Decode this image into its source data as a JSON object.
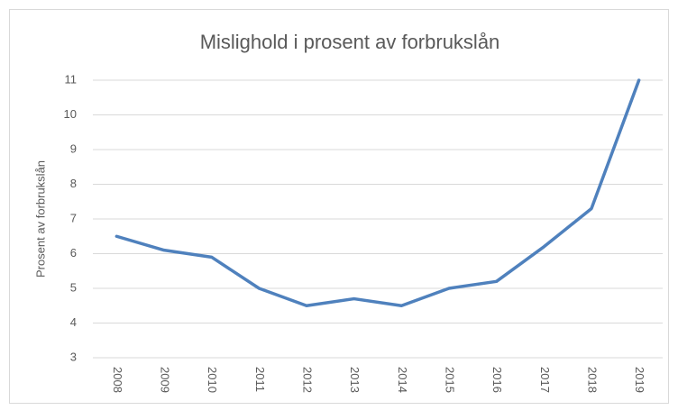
{
  "chart_data": {
    "type": "line",
    "title": "Mislighold i prosent av forbrukslån",
    "y_label": "Prosent av forbrukslån",
    "categories": [
      "2008",
      "2009",
      "2010",
      "2011",
      "2012",
      "2013",
      "2014",
      "2015",
      "2016",
      "2017",
      "2018",
      "2019"
    ],
    "series": [
      {
        "name": "Mislighold",
        "color": "#4f81bd",
        "values": [
          6.5,
          6.1,
          5.9,
          5.0,
          4.5,
          4.7,
          4.5,
          5.0,
          5.2,
          6.2,
          7.3,
          11.0
        ]
      }
    ],
    "ylim": [
      3,
      11
    ],
    "yticks": [
      3,
      4,
      5,
      6,
      7,
      8,
      9,
      10,
      11
    ],
    "grid": true
  }
}
